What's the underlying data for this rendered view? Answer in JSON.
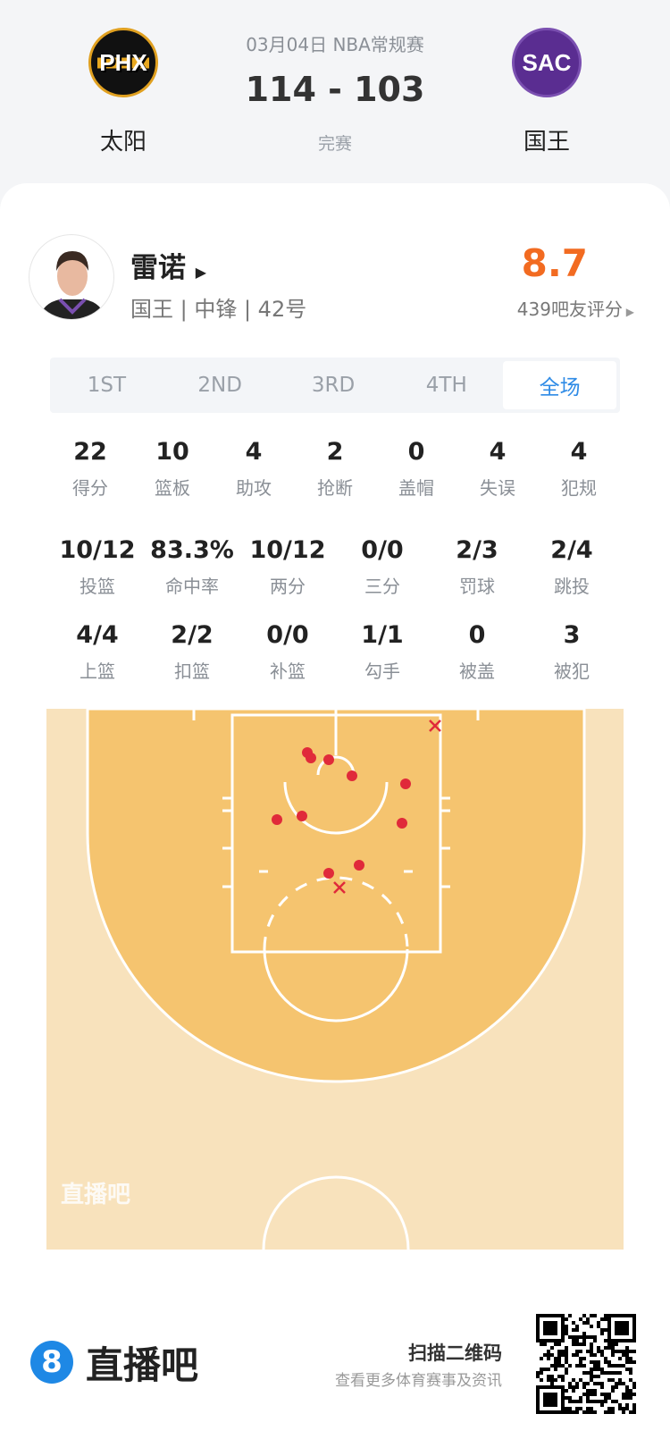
{
  "header": {
    "date_league": "03月04日 NBA常规赛",
    "score": "114 - 103",
    "status": "完赛",
    "home": {
      "name": "太阳",
      "logo_text": "PHX"
    },
    "away": {
      "name": "国王",
      "logo_text": "SAC"
    }
  },
  "player": {
    "name": "雷诺",
    "info": "国王 | 中锋 | 42号",
    "rating": "8.7",
    "rating_label": "439吧友评分",
    "rating_color": "#f26b21"
  },
  "tabs": [
    {
      "label": "1ST"
    },
    {
      "label": "2ND"
    },
    {
      "label": "3RD"
    },
    {
      "label": "4TH"
    },
    {
      "label": "全场",
      "active": true
    }
  ],
  "stats_row1": [
    {
      "v": "22",
      "l": "得分"
    },
    {
      "v": "10",
      "l": "篮板"
    },
    {
      "v": "4",
      "l": "助攻"
    },
    {
      "v": "2",
      "l": "抢断"
    },
    {
      "v": "0",
      "l": "盖帽"
    },
    {
      "v": "4",
      "l": "失误"
    },
    {
      "v": "4",
      "l": "犯规"
    }
  ],
  "stats_row2": [
    {
      "v": "10/12",
      "l": "投篮"
    },
    {
      "v": "83.3%",
      "l": "命中率"
    },
    {
      "v": "10/12",
      "l": "两分"
    },
    {
      "v": "0/0",
      "l": "三分"
    },
    {
      "v": "2/3",
      "l": "罚球"
    },
    {
      "v": "2/4",
      "l": "跳投"
    }
  ],
  "stats_row3": [
    {
      "v": "4/4",
      "l": "上篮"
    },
    {
      "v": "2/2",
      "l": "扣篮"
    },
    {
      "v": "0/0",
      "l": "补篮"
    },
    {
      "v": "1/1",
      "l": "勾手"
    },
    {
      "v": "0",
      "l": "被盖"
    },
    {
      "v": "3",
      "l": "被犯"
    }
  ],
  "shot_chart": {
    "made": 10,
    "missed": 2,
    "watermark": "直播吧",
    "made_color": "#e02a3a",
    "court_color": "#f5c46f",
    "outer_color": "#f8e2bc"
  },
  "footer": {
    "brand": "直播吧",
    "brand_icon": "8",
    "scan_title": "扫描二维码",
    "scan_sub": "查看更多体育赛事及资讯",
    "accent": "#1e88e5"
  }
}
